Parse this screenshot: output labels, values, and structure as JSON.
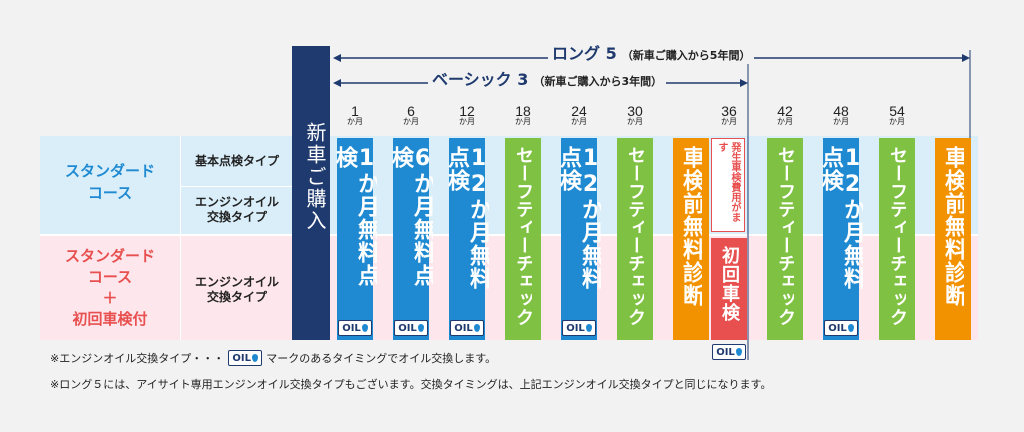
{
  "header": {
    "long_title": "ロング 5",
    "long_sub": "（新車ご購入から5年間）",
    "basic_title": "ベーシック 3",
    "basic_sub": "（新車ご購入から3年間）"
  },
  "rows": {
    "standard_course": "スタンダード\nコース",
    "standard_plus": "スタンダード\nコース\n＋\n初回車検付",
    "sub_basic": "基本点検タイプ",
    "sub_engine1": "エンジンオイル\n交換タイプ",
    "sub_engine2": "エンジンオイル\n交換タイプ"
  },
  "new_car": "新車ご購入",
  "month_unit": "か月",
  "oil_label": "OIL",
  "columns": [
    {
      "month": "1",
      "label": "1か月無料点検",
      "color": "#1f8ad1",
      "oil": true
    },
    {
      "month": "6",
      "label": "6か月無料点検",
      "color": "#1f8ad1",
      "oil": true
    },
    {
      "month": "12",
      "label": "12か月無料点検",
      "color": "#1f8ad1",
      "oil": true
    },
    {
      "month": "18",
      "label": "セーフティーチェック",
      "color": "#7fc142",
      "oil": false
    },
    {
      "month": "24",
      "label": "12か月無料点検",
      "color": "#1f8ad1",
      "oil": true
    },
    {
      "month": "30",
      "label": "セーフティーチェック",
      "color": "#7fc142",
      "oil": false
    },
    {
      "month": "",
      "label": "車検前無料診断",
      "color": "#f39200",
      "oil": false
    },
    {
      "month": "36",
      "label": "初回車検",
      "color": "#e8504f",
      "oil": true
    },
    {
      "month": "42",
      "label": "セーフティーチェック",
      "color": "#7fc142",
      "oil": false
    },
    {
      "month": "48",
      "label": "12か月無料点検",
      "color": "#1f8ad1",
      "oil": true
    },
    {
      "month": "54",
      "label": "セーフティーチェック",
      "color": "#7fc142",
      "oil": false
    },
    {
      "month": "",
      "label": "車検前無料診断",
      "color": "#f39200",
      "oil": false
    }
  ],
  "fee_box": "発生車検費用がます",
  "notes": {
    "note1_pre": "※エンジンオイル交換タイプ・・・",
    "note1_post": "マークのあるタイミングでオイル交換します。",
    "note2": "※ロング５には、アイサイト専用エンジンオイル交換タイプもございます。交換タイミングは、上記エンジンオイル交換タイプと同じになります。"
  },
  "colors": {
    "navy": "#1f3a6e",
    "blue": "#1f8ad1",
    "green": "#7fc142",
    "orange": "#f39200",
    "red": "#e8504f",
    "std_text": "#1f8ad1",
    "pink_text": "#e8504f"
  }
}
